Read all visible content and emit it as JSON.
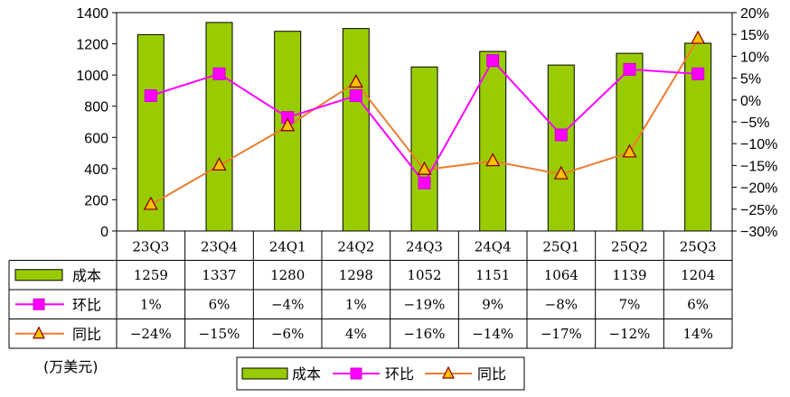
{
  "chart_data": {
    "type": "bar",
    "categories": [
      "23Q3",
      "23Q4",
      "24Q1",
      "24Q2",
      "24Q3",
      "24Q4",
      "25Q1",
      "25Q2",
      "25Q3"
    ],
    "series": [
      {
        "name": "成本",
        "type": "bar",
        "axis": "left",
        "values": [
          1259,
          1337,
          1280,
          1298,
          1052,
          1151,
          1064,
          1139,
          1204
        ],
        "labels": [
          "1259",
          "1337",
          "1280",
          "1298",
          "1052",
          "1151",
          "1064",
          "1139",
          "1204"
        ],
        "color": "#99CC00"
      },
      {
        "name": "环比",
        "type": "line",
        "axis": "right",
        "marker": "square",
        "values": [
          1,
          6,
          -4,
          1,
          -19,
          9,
          -8,
          7,
          6
        ],
        "labels": [
          "1%",
          "6%",
          "-4%",
          "1%",
          "-19%",
          "9%",
          "-8%",
          "7%",
          "6%"
        ],
        "color": "#FF00FF"
      },
      {
        "name": "同比",
        "type": "line",
        "axis": "right",
        "marker": "triangle",
        "values": [
          -24,
          -15,
          -6,
          4,
          -16,
          -14,
          -17,
          -12,
          14
        ],
        "labels": [
          "-24%",
          "-15%",
          "-6%",
          "4%",
          "-16%",
          "-14%",
          "-17%",
          "-12%",
          "14%"
        ],
        "color": "#ED7D31",
        "marker_fill": "#FFC000",
        "marker_edge": "#8B0000"
      }
    ],
    "ylim_left": [
      0,
      1400
    ],
    "yticks_left": [
      "0",
      "200",
      "400",
      "600",
      "800",
      "1000",
      "1200",
      "1400"
    ],
    "ylim_right": [
      -30,
      20
    ],
    "yticks_right": [
      "-30%",
      "-25%",
      "-20%",
      "-15%",
      "-10%",
      "-5%",
      "0%",
      "5%",
      "10%",
      "15%",
      "20%"
    ],
    "unit": "(万美元)",
    "legend_position": "bottom-center",
    "data_table": true,
    "grid": false
  }
}
